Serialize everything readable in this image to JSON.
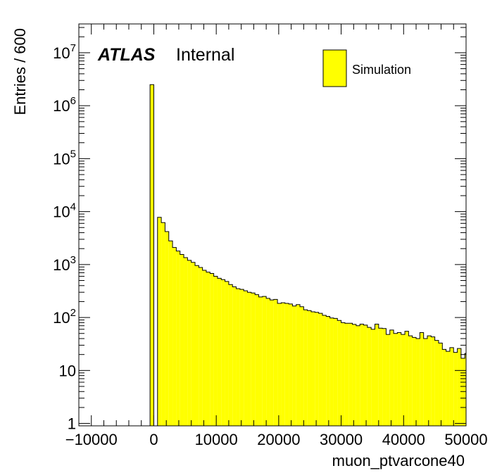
{
  "chart_data": {
    "type": "bar",
    "style": "histogram-step-filled",
    "title": "",
    "xlabel": "muon_ptvarcone40",
    "ylabel": "Entries / 600",
    "xlim": [
      -12000,
      50000
    ],
    "ylim": [
      0.9,
      35000000
    ],
    "y_scale": "log",
    "bin_width": 600,
    "x_ticks": [
      "−10000",
      "0",
      "10000",
      "20000",
      "30000",
      "40000",
      "50000"
    ],
    "y_ticks": [
      {
        "value": 1,
        "label": "1",
        "exp": ""
      },
      {
        "value": 10,
        "label": "10",
        "exp": ""
      },
      {
        "value": 100,
        "label": "10",
        "exp": "2"
      },
      {
        "value": 1000,
        "label": "10",
        "exp": "3"
      },
      {
        "value": 10000,
        "label": "10",
        "exp": "4"
      },
      {
        "value": 100000,
        "label": "10",
        "exp": "5"
      },
      {
        "value": 1000000,
        "label": "10",
        "exp": "6"
      },
      {
        "value": 10000000,
        "label": "10",
        "exp": "7"
      }
    ],
    "fill_color": "#ffff00",
    "line_color": "#000000",
    "legend": {
      "position": "top-right",
      "entries": [
        {
          "name": "Simulation"
        }
      ]
    },
    "annotation": {
      "experiment": "ATLAS",
      "status": "Internal"
    },
    "series": [
      {
        "name": "Simulation",
        "bin_starts": [
          -600,
          600,
          1200,
          1800,
          2400,
          3000,
          3600,
          4200,
          4800,
          5400,
          6000,
          6600,
          7200,
          7800,
          8400,
          9000,
          9600,
          10200,
          10800,
          11400,
          12000,
          12600,
          13200,
          13800,
          14400,
          15000,
          15600,
          16200,
          16800,
          17400,
          18000,
          18600,
          19200,
          19800,
          20400,
          21000,
          21600,
          22200,
          22800,
          23400,
          24000,
          24600,
          25200,
          25800,
          26400,
          27000,
          27600,
          28200,
          28800,
          29400,
          30000,
          30600,
          31200,
          31800,
          32400,
          33000,
          33600,
          34200,
          34800,
          35400,
          36000,
          36600,
          37200,
          37800,
          38400,
          39000,
          39600,
          40200,
          40800,
          41400,
          42000,
          42600,
          43200,
          43800,
          44400,
          45000,
          45600,
          46200,
          46800,
          47400,
          48000,
          48600,
          49200,
          49800
        ],
        "values": [
          2500000,
          7800,
          6200,
          4200,
          2800,
          2100,
          1800,
          1550,
          1350,
          1200,
          1100,
          960,
          880,
          780,
          720,
          680,
          600,
          550,
          520,
          480,
          420,
          380,
          350,
          340,
          320,
          300,
          290,
          270,
          245,
          250,
          230,
          215,
          220,
          185,
          190,
          185,
          180,
          165,
          175,
          160,
          140,
          135,
          128,
          125,
          120,
          110,
          105,
          98,
          96,
          88,
          80,
          78,
          78,
          74,
          70,
          75,
          72,
          65,
          60,
          75,
          63,
          62,
          48,
          58,
          50,
          52,
          48,
          55,
          45,
          42,
          40,
          52,
          40,
          45,
          43,
          37,
          33,
          25,
          23,
          27,
          22,
          26,
          17,
          21
        ]
      }
    ]
  }
}
